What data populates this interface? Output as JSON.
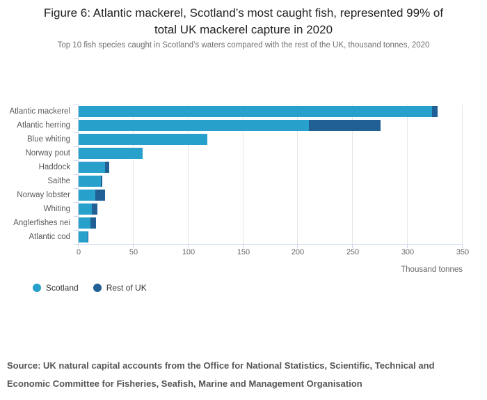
{
  "header": {
    "title_line1": "Figure 6: Atlantic mackerel, Scotland’s most caught fish, represented 99% of",
    "title_line2": "total UK mackerel capture in 2020",
    "subtitle": "Top 10 fish species caught in Scotland’s waters compared with the rest of the UK, thousand tonnes, 2020"
  },
  "chart_data": {
    "type": "bar",
    "orientation": "horizontal",
    "stacked": true,
    "title": "Figure 6: Atlantic mackerel, Scotland’s most caught fish, represented 99% of total UK mackerel capture in 2020",
    "subtitle": "Top 10 fish species caught in Scotland’s waters compared with the rest of the UK, thousand tonnes, 2020",
    "categories": [
      "Atlantic mackerel",
      "Atlantic herring",
      "Blue whiting",
      "Norway pout",
      "Haddock",
      "Saithe",
      "Norway lobster",
      "Whiting",
      "Anglerfishes nei",
      "Atlantic cod"
    ],
    "series": [
      {
        "name": "Scotland",
        "color": "#27A0CC",
        "values": [
          322,
          210,
          117,
          58,
          24,
          20,
          15,
          12,
          11,
          8
        ]
      },
      {
        "name": "Rest of UK",
        "color": "#206095",
        "values": [
          5,
          65,
          0,
          0,
          4,
          1.5,
          9,
          5,
          5,
          1
        ]
      }
    ],
    "xlabel": "Thousand tonnes",
    "ylabel": "",
    "xlim": [
      0,
      350
    ],
    "xticks": [
      0,
      50,
      100,
      150,
      200,
      250,
      300,
      350
    ],
    "grid": true,
    "legend_position": "bottom-left",
    "colors": {
      "scotland": "#27A0CC",
      "rest_of_uk": "#206095",
      "gridline": "#e6e6e6",
      "axis_line": "#ccd6eb"
    }
  },
  "legend": {
    "items": [
      {
        "label": "Scotland",
        "color": "#27A0CC"
      },
      {
        "label": "Rest of UK",
        "color": "#206095"
      }
    ]
  },
  "source": {
    "line1": "Source: UK natural capital accounts from the Office for National Statistics, Scientific, Technical and",
    "line2": "Economic Committee for Fisheries, Seafish, Marine and Management Organisation"
  }
}
